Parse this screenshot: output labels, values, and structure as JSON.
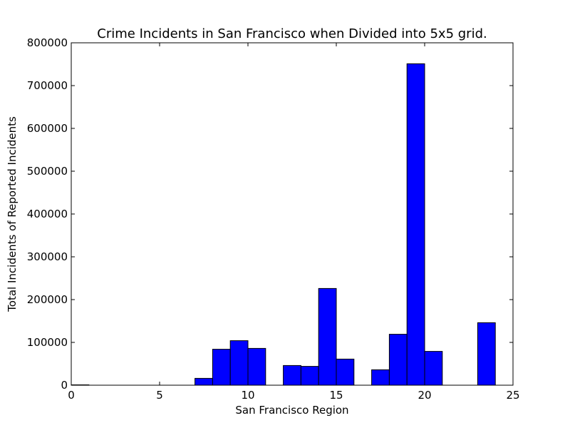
{
  "chart_data": {
    "type": "bar",
    "title": "Crime Incidents in San Francisco when Divided into 5x5 grid.",
    "xlabel": "San Francisco Region",
    "ylabel": "Total Incidents of Reported Incidents",
    "xlim": [
      0,
      25
    ],
    "ylim": [
      0,
      800000
    ],
    "xticks": [
      "0",
      "5",
      "10",
      "15",
      "20",
      "25"
    ],
    "yticks": [
      "0",
      "100000",
      "200000",
      "300000",
      "400000",
      "500000",
      "600000",
      "700000",
      "800000"
    ],
    "bar_width": 1,
    "categories": [
      0,
      7,
      8,
      9,
      10,
      12,
      13,
      14,
      15,
      17,
      18,
      19,
      20,
      23
    ],
    "values": [
      800,
      16000,
      84000,
      104000,
      86000,
      46000,
      44000,
      226000,
      61000,
      36000,
      119000,
      751000,
      79000,
      146000
    ],
    "bar_color": "#0000ff",
    "grid": false,
    "legend": "none"
  }
}
